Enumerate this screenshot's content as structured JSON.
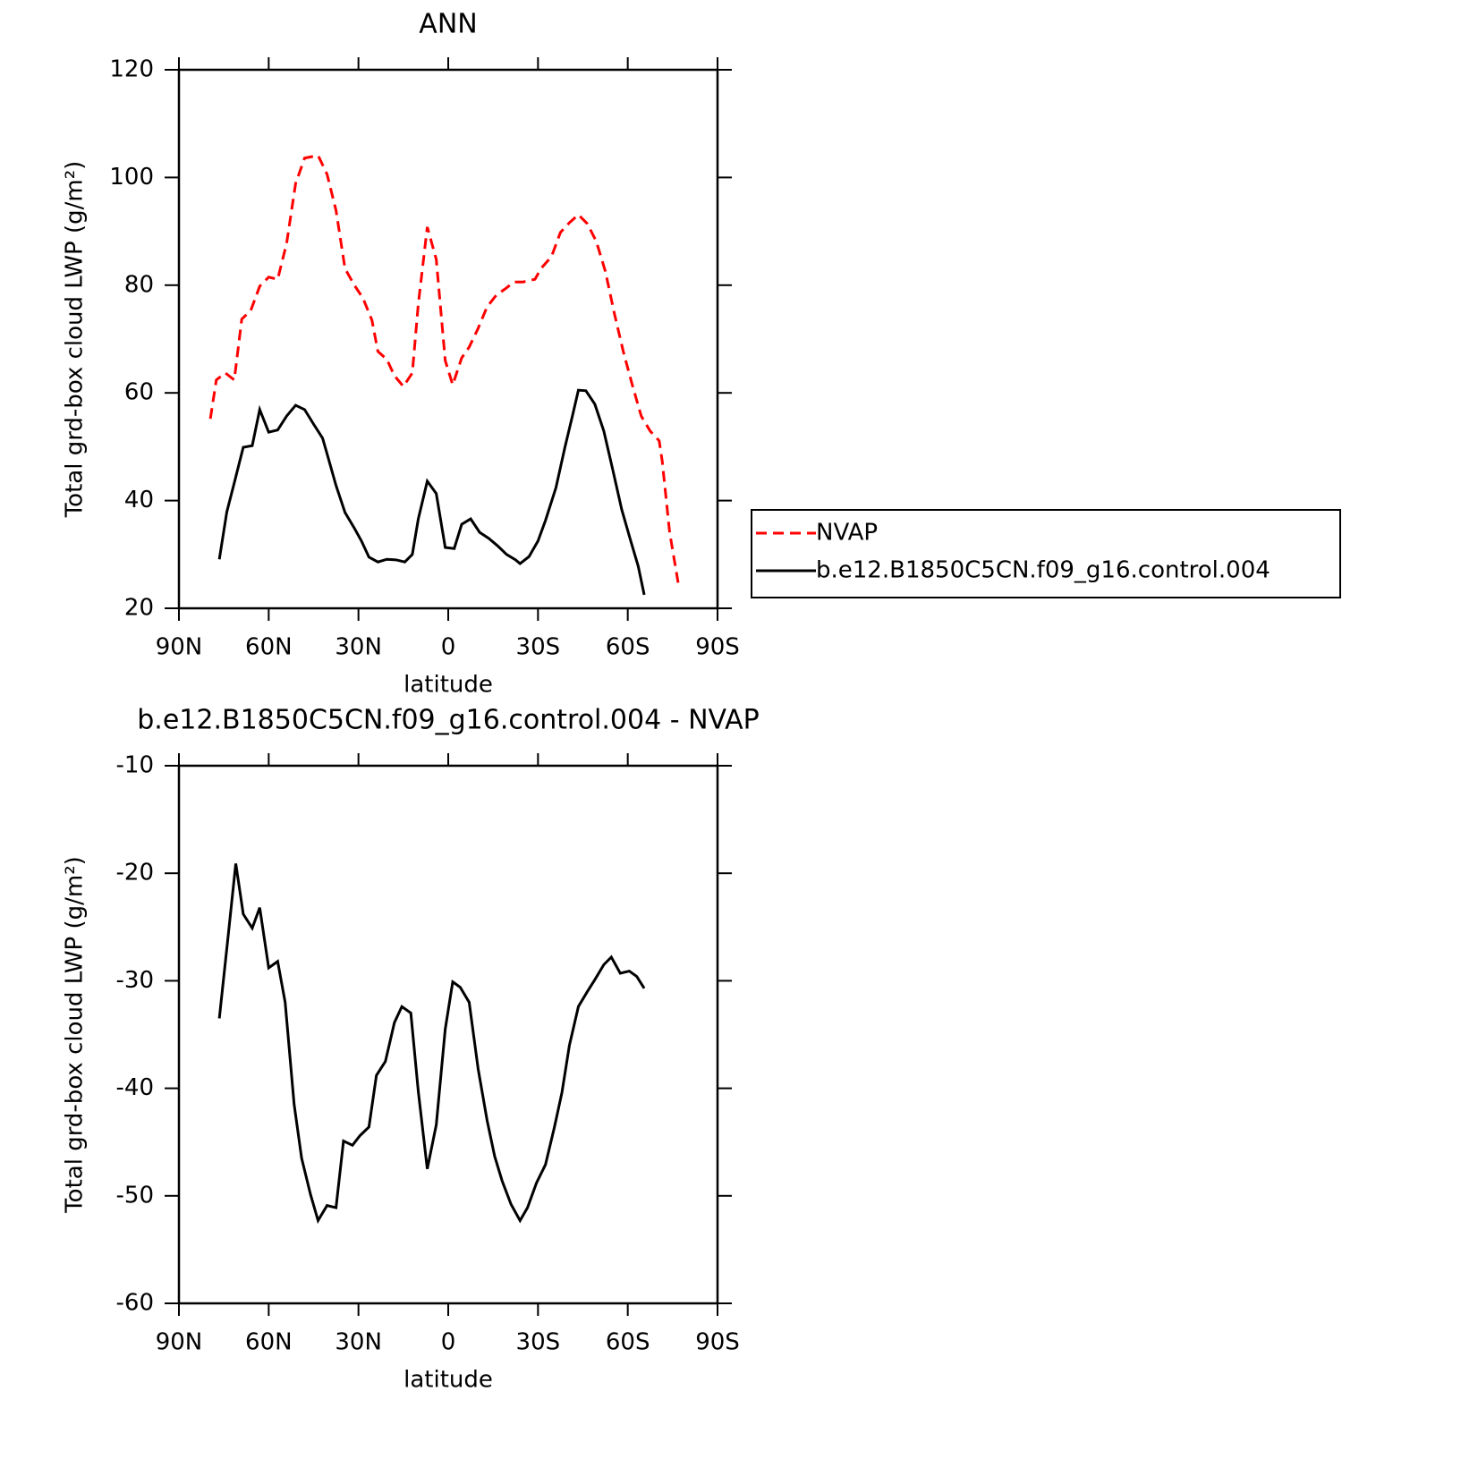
{
  "chart_data": [
    {
      "type": "line",
      "title": "ANN",
      "xlabel": "latitude",
      "ylabel": "Total grd-box cloud LWP (g/m²)",
      "xlim": [
        90,
        -90
      ],
      "xticks": [
        {
          "value": 90,
          "label": "90N"
        },
        {
          "value": 60,
          "label": "60N"
        },
        {
          "value": 30,
          "label": "30N"
        },
        0,
        {
          "value": -30,
          "label": "30S"
        },
        {
          "value": -60,
          "label": "60S"
        },
        {
          "value": -90,
          "label": "90S"
        }
      ],
      "ylim": [
        20,
        120
      ],
      "yticks": [
        20,
        40,
        60,
        80,
        100,
        120
      ],
      "legend": "right",
      "series": [
        {
          "name": "NVAP",
          "color": "#ff0000",
          "dashed": true,
          "x": [
            79.5,
            77.5,
            74.5,
            71.5,
            69,
            66,
            63,
            60,
            57,
            54,
            51,
            48,
            43.5,
            40.5,
            37.5,
            34.5,
            31.5,
            28.5,
            25.5,
            23.5,
            20.5,
            18,
            15,
            12,
            10,
            7,
            4,
            1,
            -1.5,
            -4.5,
            -7,
            -10,
            -13,
            -16,
            -19,
            -22,
            -25,
            -29,
            -31,
            -34.5,
            -37.5,
            -40.5,
            -43.5,
            -46.5,
            -49.5,
            -52.5,
            -55.5,
            -58.5,
            -61.5,
            -64.5,
            -67.5,
            -70.5,
            -71.5,
            -74,
            -77
          ],
          "values": [
            55.2,
            62.4,
            63.7,
            62.4,
            73.7,
            75.3,
            79.8,
            81.5,
            81.1,
            87.8,
            98.9,
            103.6,
            104.1,
            100.6,
            93.9,
            83.1,
            80.1,
            77.6,
            73.5,
            67.7,
            66.2,
            63.2,
            61.2,
            63.7,
            76.5,
            90.8,
            84.8,
            66,
            61.5,
            66.5,
            68.5,
            72,
            76,
            78.1,
            79.3,
            80.6,
            80.6,
            81.1,
            83.1,
            85.3,
            89.8,
            91.6,
            93.1,
            91.4,
            88.1,
            82.6,
            74.8,
            67.7,
            61.5,
            55.7,
            52.9,
            51.1,
            47.4,
            34.1,
            24.2
          ]
        },
        {
          "name": "b.e12.B1850C5CN.f09_g16.control.004",
          "color": "#000000",
          "dashed": false,
          "x": [
            76.5,
            74,
            71.5,
            68.5,
            65.5,
            63,
            60,
            57,
            54,
            51,
            48,
            45,
            42,
            40.5,
            37.5,
            34.5,
            31.5,
            29,
            26.5,
            23.5,
            20.5,
            17.5,
            14.5,
            12,
            10,
            7,
            4,
            1,
            -2,
            -4.5,
            -7.5,
            -10.5,
            -13.5,
            -16.5,
            -19.5,
            -22.5,
            -24,
            -27,
            -30,
            -32.5,
            -36,
            -39,
            -41.5,
            -43.5,
            -46,
            -49,
            -52,
            -55,
            -58,
            -61,
            -63.5,
            -65.5
          ],
          "values": [
            29.1,
            37.9,
            43.3,
            49.9,
            50.2,
            56.9,
            52.7,
            53.1,
            55.7,
            57.7,
            56.9,
            54.2,
            51.6,
            48.7,
            42.8,
            37.8,
            35,
            32.5,
            29.5,
            28.6,
            29.1,
            29,
            28.6,
            30,
            36.6,
            43.6,
            41.3,
            31.3,
            31.1,
            35.6,
            36.6,
            34.1,
            33,
            31.6,
            30,
            29,
            28.3,
            29.6,
            32.5,
            36.3,
            42.4,
            49.9,
            55.7,
            60.5,
            60.4,
            57.9,
            52.9,
            45.7,
            38.3,
            32.5,
            27.8,
            22.5
          ]
        }
      ]
    },
    {
      "type": "line",
      "title": "b.e12.B1850C5CN.f09_g16.control.004 - NVAP",
      "xlabel": "latitude",
      "ylabel": "Total grd-box cloud LWP (g/m²)",
      "xlim": [
        90,
        -90
      ],
      "xticks": [
        {
          "value": 90,
          "label": "90N"
        },
        {
          "value": 60,
          "label": "60N"
        },
        {
          "value": 30,
          "label": "30N"
        },
        0,
        {
          "value": -30,
          "label": "30S"
        },
        {
          "value": -60,
          "label": "60S"
        },
        {
          "value": -90,
          "label": "90S"
        }
      ],
      "ylim": [
        -60,
        -10
      ],
      "yticks": [
        -60,
        -50,
        -40,
        -30,
        -20,
        -10
      ],
      "series": [
        {
          "color": "#000000",
          "dashed": false,
          "x": [
            76.5,
            73.5,
            71,
            68.5,
            65.5,
            63,
            60,
            57,
            54.5,
            51.5,
            49,
            46,
            43.5,
            40.5,
            37.5,
            35,
            32,
            29.5,
            26.5,
            24,
            21,
            18,
            15.5,
            12.5,
            10,
            7,
            4,
            1,
            -1.5,
            -4,
            -7,
            -10,
            -13,
            -15.5,
            -18,
            -21,
            -24,
            -26.5,
            -29.5,
            -32.5,
            -35.5,
            -38,
            -40.5,
            -43.5,
            -46.5,
            -49,
            -52,
            -54.5,
            -57.5,
            -60.5,
            -63,
            -65.5
          ],
          "values": [
            -33.5,
            -25.7,
            -19.1,
            -23.8,
            -25.1,
            -23.2,
            -28.8,
            -28.2,
            -32,
            -41.5,
            -46.5,
            -49.9,
            -52.3,
            -50.9,
            -51.1,
            -44.9,
            -45.3,
            -44.4,
            -43.6,
            -38.8,
            -37.5,
            -33.9,
            -32.4,
            -33,
            -40.3,
            -47.5,
            -43.4,
            -34.5,
            -30.1,
            -30.6,
            -32,
            -38.2,
            -43,
            -46.3,
            -48.6,
            -50.8,
            -52.3,
            -51.1,
            -48.8,
            -47.1,
            -43.6,
            -40.4,
            -36,
            -32.4,
            -31,
            -29.9,
            -28.5,
            -27.8,
            -29.3,
            -29.1,
            -29.6,
            -30.7
          ]
        }
      ]
    }
  ]
}
